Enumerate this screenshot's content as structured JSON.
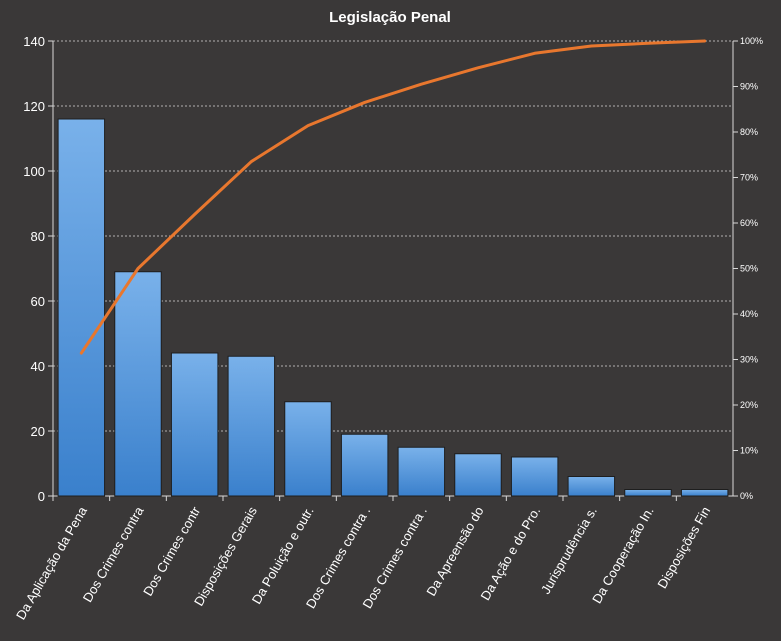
{
  "chart_data": {
    "type": "bar",
    "title": "Legislação Penal",
    "categories": [
      "Da Aplicação da Pena",
      "Dos Crimes contra",
      "Dos Crimes contr",
      "Disposições Gerais",
      "Da Poluição e outr.",
      "Dos Crimes contra  .",
      "Dos Crimes contra .",
      "Da Apreensão do",
      "Da Ação e do Pro.",
      "Jurisprudência  s.",
      "Da Cooperação In.",
      "Disposições Fin"
    ],
    "series": [
      {
        "type": "bar",
        "values": [
          116,
          69,
          44,
          43,
          29,
          19,
          15,
          13,
          12,
          6,
          2,
          2
        ],
        "color": "#4a8fd8"
      },
      {
        "type": "line",
        "axis": "right",
        "values": [
          31.4,
          50.0,
          61.9,
          73.5,
          81.4,
          86.5,
          90.5,
          94.1,
          97.3,
          98.9,
          99.5,
          100.0
        ],
        "color": "#e8772e"
      }
    ],
    "ylim": [
      0,
      140
    ],
    "yticks": [
      0,
      20,
      40,
      60,
      80,
      100,
      120,
      140
    ],
    "ylim_right": [
      0,
      100
    ],
    "yticks_right": [
      "0%",
      "10%",
      "20%",
      "30%",
      "40%",
      "50%",
      "60%",
      "70%",
      "80%",
      "90%",
      "100%"
    ],
    "grid": true,
    "legend": false,
    "colors": {
      "background": "#3a3838",
      "grid": "#d9d9d9",
      "text": "#ffffff"
    }
  }
}
